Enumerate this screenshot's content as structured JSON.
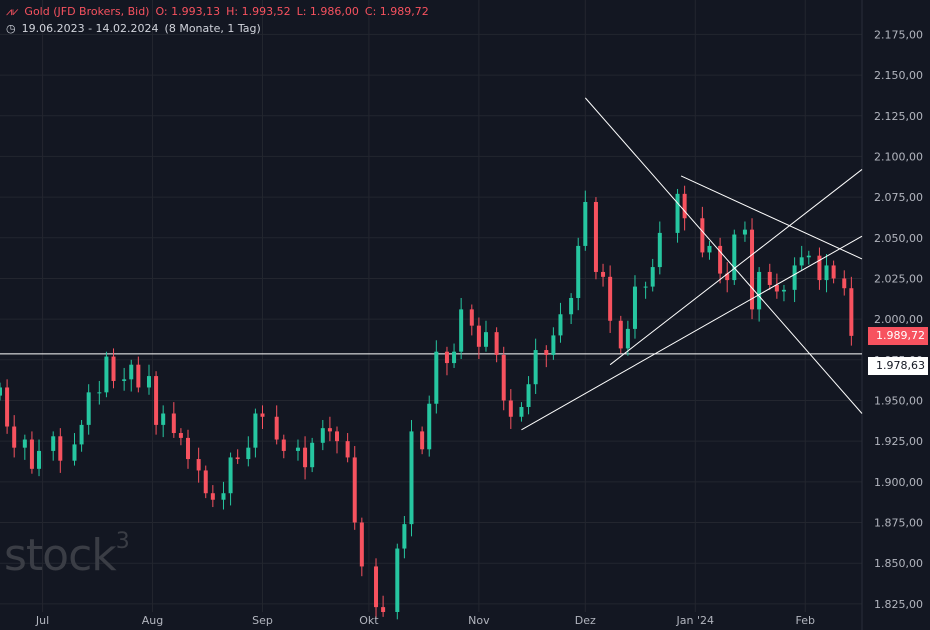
{
  "header": {
    "symbol": "Gold (JFD Brokers, Bid)",
    "open": "O: 1.993,13",
    "high": "H: 1.993,52",
    "low": "L: 1.986,00",
    "close": "C: 1.989,72",
    "range": "19.06.2023 - 14.02.2024",
    "period": "(8 Monate, 1 Tag)"
  },
  "logo": {
    "text": "stock",
    "mark": "3"
  },
  "colors": {
    "up": "#26c6a0",
    "down": "#f7525f",
    "background": "#131722",
    "grid": "#23262f",
    "lines": "#ffffff"
  },
  "chart_data": {
    "type": "candlestick",
    "y_ticks": [
      "2.175,00",
      "2.150,00",
      "2.125,00",
      "2.100,00",
      "2.075,00",
      "2.050,00",
      "2.025,00",
      "2.000,00",
      "1.975,00",
      "1.950,00",
      "1.925,00",
      "1.900,00",
      "1.875,00",
      "1.850,00",
      "1.825,00"
    ],
    "x_ticks": [
      "Jul",
      "Aug",
      "Sep",
      "Okt",
      "Nov",
      "Dez",
      "Jan '24",
      "Feb"
    ],
    "x_tick_dates": [
      "2023-07-01",
      "2023-08-01",
      "2023-09-01",
      "2023-10-01",
      "2023-11-01",
      "2023-12-01",
      "2024-01-01",
      "2024-02-01"
    ],
    "ylim": [
      1820,
      2190
    ],
    "xlim": [
      "2023-06-19",
      "2024-02-17"
    ],
    "last_price": {
      "value": 1989.72,
      "label": "1.989,72"
    },
    "level_line": {
      "value": 1978.63,
      "label": "1.978,63"
    },
    "trend_lines": [
      {
        "from": [
          "2023-11-13",
          1932
        ],
        "to": [
          "2024-02-17",
          2051
        ]
      },
      {
        "from": [
          "2023-12-08",
          1972
        ],
        "to": [
          "2024-02-17",
          2092
        ]
      },
      {
        "from": [
          "2023-12-01",
          2136
        ],
        "to": [
          "2024-02-17",
          1942
        ]
      },
      {
        "from": [
          "2023-12-28",
          2088
        ],
        "to": [
          "2024-02-17",
          2037
        ]
      }
    ],
    "series_close": [
      [
        "2023-06-19",
        1958
      ],
      [
        "2023-06-21",
        1934
      ],
      [
        "2023-06-23",
        1921
      ],
      [
        "2023-06-26",
        1926
      ],
      [
        "2023-06-28",
        1908
      ],
      [
        "2023-06-30",
        1919
      ],
      [
        "2023-07-04",
        1928
      ],
      [
        "2023-07-06",
        1913
      ],
      [
        "2023-07-10",
        1923
      ],
      [
        "2023-07-12",
        1935
      ],
      [
        "2023-07-14",
        1955
      ],
      [
        "2023-07-17",
        1955
      ],
      [
        "2023-07-19",
        1977
      ],
      [
        "2023-07-21",
        1962
      ],
      [
        "2023-07-24",
        1963
      ],
      [
        "2023-07-26",
        1972
      ],
      [
        "2023-07-28",
        1958
      ],
      [
        "2023-07-31",
        1965
      ],
      [
        "2023-08-02",
        1935
      ],
      [
        "2023-08-04",
        1942
      ],
      [
        "2023-08-07",
        1930
      ],
      [
        "2023-08-09",
        1927
      ],
      [
        "2023-08-11",
        1914
      ],
      [
        "2023-08-14",
        1907
      ],
      [
        "2023-08-16",
        1893
      ],
      [
        "2023-08-18",
        1889
      ],
      [
        "2023-08-21",
        1893
      ],
      [
        "2023-08-23",
        1915
      ],
      [
        "2023-08-25",
        1914
      ],
      [
        "2023-08-28",
        1921
      ],
      [
        "2023-08-30",
        1942
      ],
      [
        "2023-09-01",
        1940
      ],
      [
        "2023-09-05",
        1926
      ],
      [
        "2023-09-07",
        1919
      ],
      [
        "2023-09-11",
        1921
      ],
      [
        "2023-09-13",
        1909
      ],
      [
        "2023-09-15",
        1924
      ],
      [
        "2023-09-18",
        1933
      ],
      [
        "2023-09-20",
        1931
      ],
      [
        "2023-09-22",
        1925
      ],
      [
        "2023-09-25",
        1915
      ],
      [
        "2023-09-27",
        1875
      ],
      [
        "2023-09-29",
        1848
      ],
      [
        "2023-10-03",
        1823
      ],
      [
        "2023-10-05",
        1820
      ],
      [
        "2023-10-09",
        1859
      ],
      [
        "2023-10-11",
        1874
      ],
      [
        "2023-10-13",
        1931
      ],
      [
        "2023-10-16",
        1920
      ],
      [
        "2023-10-18",
        1948
      ],
      [
        "2023-10-20",
        1980
      ],
      [
        "2023-10-23",
        1973
      ],
      [
        "2023-10-25",
        1980
      ],
      [
        "2023-10-27",
        2006
      ],
      [
        "2023-10-30",
        1996
      ],
      [
        "2023-11-01",
        1983
      ],
      [
        "2023-11-03",
        1992
      ],
      [
        "2023-11-06",
        1978
      ],
      [
        "2023-11-08",
        1950
      ],
      [
        "2023-11-10",
        1940
      ],
      [
        "2023-11-13",
        1946
      ],
      [
        "2023-11-15",
        1960
      ],
      [
        "2023-11-17",
        1981
      ],
      [
        "2023-11-20",
        1978
      ],
      [
        "2023-11-22",
        1990
      ],
      [
        "2023-11-24",
        2003
      ],
      [
        "2023-11-27",
        2013
      ],
      [
        "2023-11-29",
        2045
      ],
      [
        "2023-12-01",
        2072
      ],
      [
        "2023-12-04",
        2029
      ],
      [
        "2023-12-06",
        2026
      ],
      [
        "2023-12-08",
        1999
      ],
      [
        "2023-12-11",
        1982
      ],
      [
        "2023-12-13",
        1994
      ],
      [
        "2023-12-15",
        2020
      ],
      [
        "2023-12-18",
        2020
      ],
      [
        "2023-12-20",
        2032
      ],
      [
        "2023-12-22",
        2053
      ],
      [
        "2023-12-27",
        2077
      ],
      [
        "2023-12-29",
        2062
      ],
      [
        "2024-01-03",
        2041
      ],
      [
        "2024-01-05",
        2045
      ],
      [
        "2024-01-08",
        2028
      ],
      [
        "2024-01-10",
        2024
      ],
      [
        "2024-01-12",
        2052
      ],
      [
        "2024-01-15",
        2055
      ],
      [
        "2024-01-17",
        2006
      ],
      [
        "2024-01-19",
        2029
      ],
      [
        "2024-01-22",
        2021
      ],
      [
        "2024-01-24",
        2017
      ],
      [
        "2024-01-26",
        2018
      ],
      [
        "2024-01-29",
        2033
      ],
      [
        "2024-01-31",
        2038
      ],
      [
        "2024-02-02",
        2039
      ],
      [
        "2024-02-05",
        2024
      ],
      [
        "2024-02-07",
        2033
      ],
      [
        "2024-02-09",
        2025
      ],
      [
        "2024-02-12",
        2019
      ],
      [
        "2024-02-14",
        1989.72
      ]
    ]
  }
}
